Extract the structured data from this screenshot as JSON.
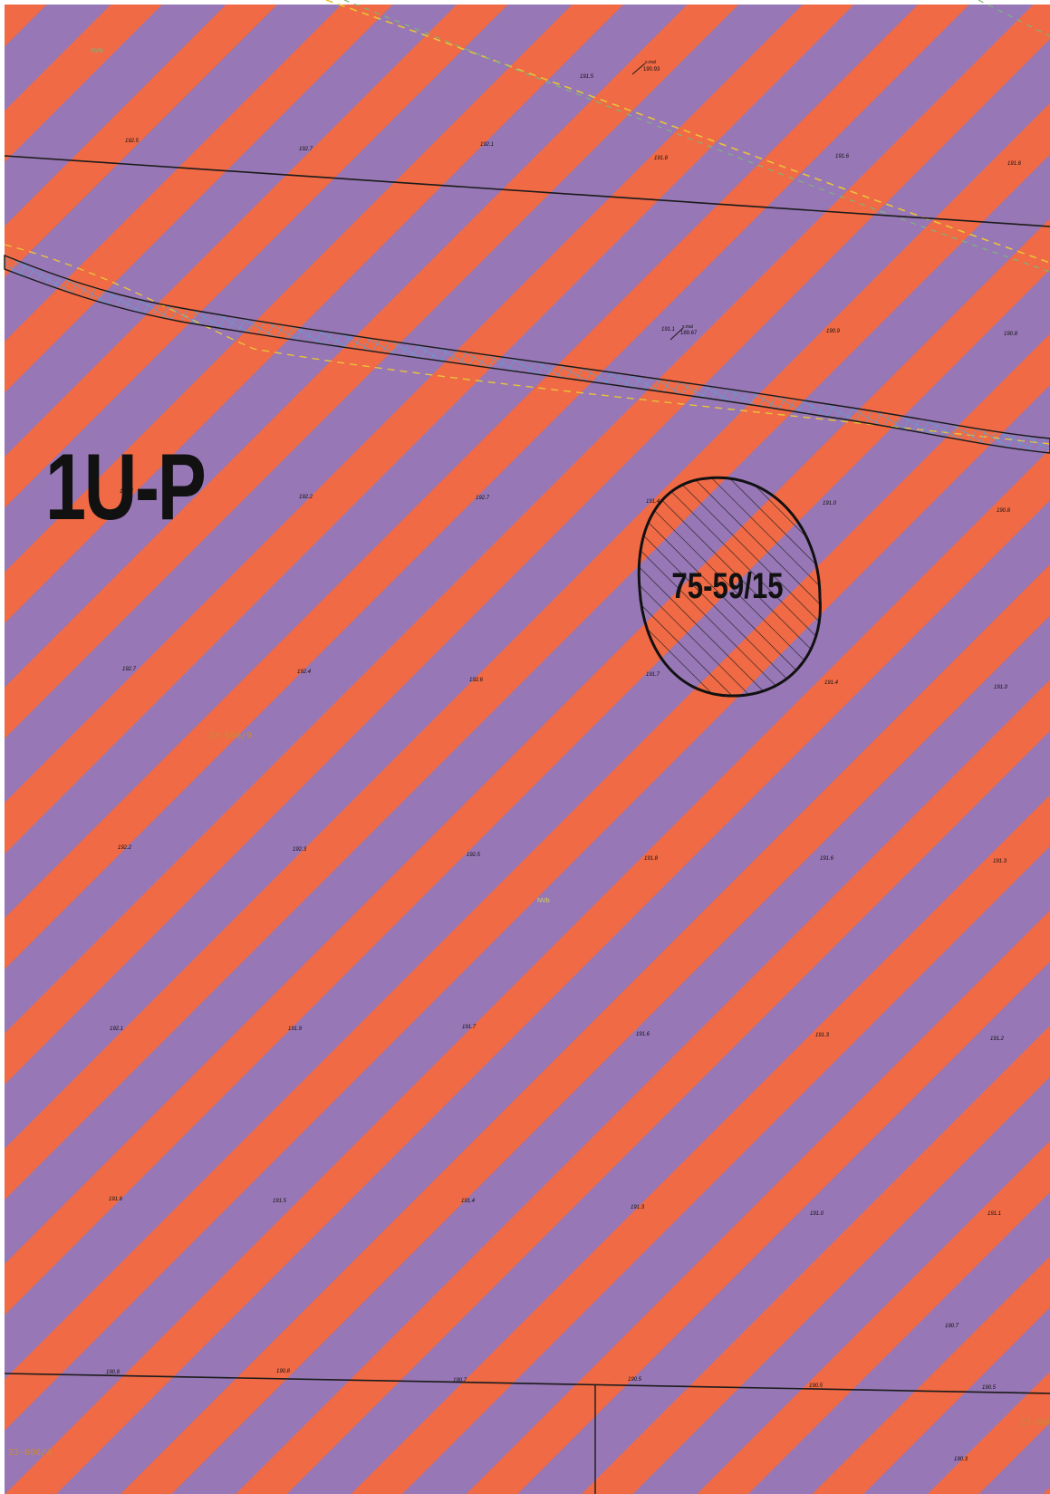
{
  "map": {
    "zone_code": "1U-P",
    "colors": {
      "stripe_orange": "#ef6a45",
      "stripe_purple": "#9777b5",
      "line": "#1a1a1a",
      "water_hatch": "#5b9fd6",
      "dash_yellow": "#e8c437",
      "dash_green": "#7ab87a",
      "parcel_label": "#c98a3a"
    },
    "special_area": {
      "label": "75-59/15"
    },
    "parcel_numbers": [
      "23-606/9",
      "23-606/4",
      "23-606/"
    ],
    "minor_labels": [
      "NVb",
      "NVb",
      "s.mal",
      "190.93",
      "s.mal",
      "189.67"
    ],
    "spot_heights": [
      "192.5",
      "192.7",
      "192.1",
      "191.8",
      "191.6",
      "191.6",
      "191.5",
      "191.1",
      "190.9",
      "190.8",
      "192.7",
      "192.2",
      "192.7",
      "191.4",
      "191.0",
      "190.8",
      "192.7",
      "192.4",
      "192.6",
      "191.7",
      "191.4",
      "191.0",
      "192.2",
      "192.3",
      "192.5",
      "191.8",
      "191.6",
      "191.3",
      "192.1",
      "191.9",
      "191.7",
      "191.6",
      "191.3",
      "191.2",
      "191.6",
      "191.5",
      "191.4",
      "191.3",
      "191.0",
      "191.1",
      "190.8",
      "190.8",
      "190.7",
      "190.5",
      "190.5",
      "190.5",
      "190.7",
      "190.3"
    ]
  }
}
